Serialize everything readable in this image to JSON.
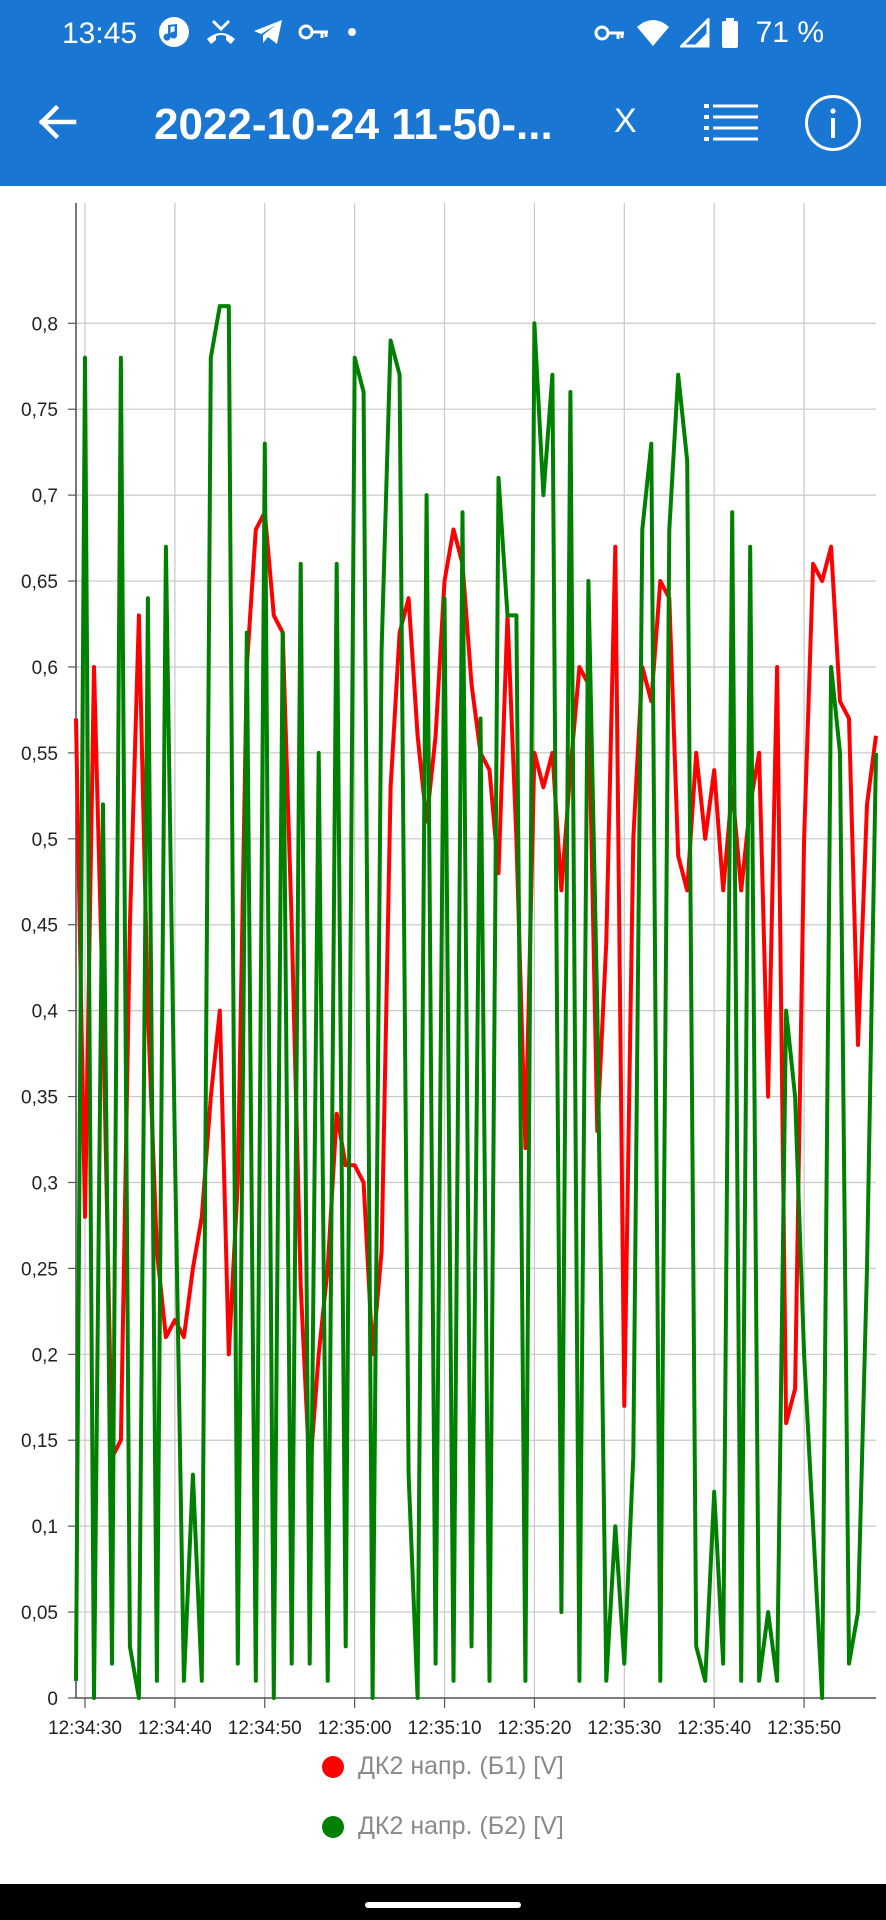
{
  "status_bar": {
    "time": "13:45",
    "battery": "71 %",
    "icons": [
      "music-icon",
      "missed-call-icon",
      "telegram-icon",
      "key-icon",
      "dot-icon",
      "vpn-key-icon",
      "wifi-icon",
      "signal-icon",
      "battery-icon"
    ]
  },
  "toolbar": {
    "title": "2022-10-24 11-50-...",
    "x_label": "X",
    "icons": [
      "back-arrow-icon",
      "list-icon",
      "info-icon"
    ]
  },
  "chart_data": {
    "type": "line",
    "title": "",
    "xlabel": "",
    "ylabel": "",
    "ylim": [
      0,
      0.87
    ],
    "xlim": [
      "12:34:29",
      "12:35:58"
    ],
    "grid": true,
    "legend_placement": "bottom",
    "y_ticks": [
      "0",
      "0,05",
      "0,1",
      "0,15",
      "0,2",
      "0,25",
      "0,3",
      "0,35",
      "0,4",
      "0,45",
      "0,5",
      "0,55",
      "0,6",
      "0,65",
      "0,7",
      "0,75",
      "0,8"
    ],
    "x_ticks": [
      "12:34:30",
      "12:34:40",
      "12:34:50",
      "12:35:00",
      "12:35:10",
      "12:35:20",
      "12:35:30",
      "12:35:40",
      "12:35:50"
    ],
    "series": [
      {
        "name": "ДК2 напр. (Б1) [V]",
        "color": "#ff0000",
        "x": [
          "12:34:29",
          "12:34:30",
          "12:34:31",
          "12:34:32",
          "12:34:33",
          "12:34:34",
          "12:34:35",
          "12:34:36",
          "12:34:37",
          "12:34:38",
          "12:34:39",
          "12:34:40",
          "12:34:41",
          "12:34:42",
          "12:34:43",
          "12:34:44",
          "12:34:45",
          "12:34:46",
          "12:34:47",
          "12:34:48",
          "12:34:49",
          "12:34:50",
          "12:34:51",
          "12:34:52",
          "12:34:53",
          "12:34:54",
          "12:34:55",
          "12:34:56",
          "12:34:57",
          "12:34:58",
          "12:34:59",
          "12:35:00",
          "12:35:01",
          "12:35:02",
          "12:35:03",
          "12:35:04",
          "12:35:05",
          "12:35:06",
          "12:35:07",
          "12:35:08",
          "12:35:09",
          "12:35:10",
          "12:35:11",
          "12:35:12",
          "12:35:13",
          "12:35:14",
          "12:35:15",
          "12:35:16",
          "12:35:17",
          "12:35:18",
          "12:35:19",
          "12:35:20",
          "12:35:21",
          "12:35:22",
          "12:35:23",
          "12:35:24",
          "12:35:25",
          "12:35:26",
          "12:35:27",
          "12:35:28",
          "12:35:29",
          "12:35:30",
          "12:35:31",
          "12:35:32",
          "12:35:33",
          "12:35:34",
          "12:35:35",
          "12:35:36",
          "12:35:37",
          "12:35:38",
          "12:35:39",
          "12:35:40",
          "12:35:41",
          "12:35:42",
          "12:35:43",
          "12:35:44",
          "12:35:45",
          "12:35:46",
          "12:35:47",
          "12:35:48",
          "12:35:49",
          "12:35:50",
          "12:35:51",
          "12:35:52",
          "12:35:53",
          "12:35:54",
          "12:35:55",
          "12:35:56",
          "12:35:57",
          "12:35:58"
        ],
        "values": [
          0.57,
          0.28,
          0.6,
          0.4,
          0.14,
          0.15,
          0.45,
          0.63,
          0.4,
          0.26,
          0.21,
          0.22,
          0.21,
          0.25,
          0.28,
          0.35,
          0.4,
          0.2,
          0.3,
          0.6,
          0.68,
          0.69,
          0.63,
          0.62,
          0.45,
          0.24,
          0.13,
          0.2,
          0.25,
          0.34,
          0.31,
          0.31,
          0.3,
          0.2,
          0.26,
          0.53,
          0.62,
          0.64,
          0.56,
          0.51,
          0.56,
          0.65,
          0.68,
          0.66,
          0.59,
          0.55,
          0.54,
          0.48,
          0.63,
          0.5,
          0.32,
          0.55,
          0.53,
          0.55,
          0.47,
          0.54,
          0.6,
          0.59,
          0.33,
          0.44,
          0.67,
          0.17,
          0.5,
          0.6,
          0.58,
          0.65,
          0.64,
          0.49,
          0.47,
          0.55,
          0.5,
          0.54,
          0.47,
          0.53,
          0.47,
          0.52,
          0.55,
          0.35,
          0.6,
          0.16,
          0.18,
          0.5,
          0.66,
          0.65,
          0.67,
          0.58,
          0.57,
          0.38,
          0.52,
          0.56
        ]
      },
      {
        "name": "ДК2 напр. (Б2) [V]",
        "color": "#008000",
        "x": [
          "12:34:29",
          "12:34:30",
          "12:34:31",
          "12:34:32",
          "12:34:33",
          "12:34:34",
          "12:34:35",
          "12:34:36",
          "12:34:37",
          "12:34:38",
          "12:34:39",
          "12:34:40",
          "12:34:41",
          "12:34:42",
          "12:34:43",
          "12:34:44",
          "12:34:45",
          "12:34:46",
          "12:34:47",
          "12:34:48",
          "12:34:49",
          "12:34:50",
          "12:34:51",
          "12:34:52",
          "12:34:53",
          "12:34:54",
          "12:34:55",
          "12:34:56",
          "12:34:57",
          "12:34:58",
          "12:34:59",
          "12:35:00",
          "12:35:01",
          "12:35:02",
          "12:35:03",
          "12:35:04",
          "12:35:05",
          "12:35:06",
          "12:35:07",
          "12:35:08",
          "12:35:09",
          "12:35:10",
          "12:35:11",
          "12:35:12",
          "12:35:13",
          "12:35:14",
          "12:35:15",
          "12:35:16",
          "12:35:17",
          "12:35:18",
          "12:35:19",
          "12:35:20",
          "12:35:21",
          "12:35:22",
          "12:35:23",
          "12:35:24",
          "12:35:25",
          "12:35:26",
          "12:35:27",
          "12:35:28",
          "12:35:29",
          "12:35:30",
          "12:35:31",
          "12:35:32",
          "12:35:33",
          "12:35:34",
          "12:35:35",
          "12:35:36",
          "12:35:37",
          "12:35:38",
          "12:35:39",
          "12:35:40",
          "12:35:41",
          "12:35:42",
          "12:35:43",
          "12:35:44",
          "12:35:45",
          "12:35:46",
          "12:35:47",
          "12:35:48",
          "12:35:49",
          "12:35:50",
          "12:35:51",
          "12:35:52",
          "12:35:53",
          "12:35:54",
          "12:35:55",
          "12:35:56",
          "12:35:57",
          "12:35:58"
        ],
        "values": [
          0.01,
          0.78,
          0.0,
          0.52,
          0.02,
          0.78,
          0.03,
          0.0,
          0.64,
          0.01,
          0.67,
          0.32,
          0.01,
          0.13,
          0.01,
          0.78,
          0.81,
          0.81,
          0.02,
          0.62,
          0.01,
          0.73,
          0.0,
          0.62,
          0.02,
          0.66,
          0.02,
          0.55,
          0.01,
          0.66,
          0.03,
          0.78,
          0.76,
          0.0,
          0.61,
          0.79,
          0.77,
          0.13,
          0.0,
          0.7,
          0.02,
          0.64,
          0.01,
          0.69,
          0.03,
          0.57,
          0.01,
          0.71,
          0.63,
          0.63,
          0.01,
          0.8,
          0.7,
          0.77,
          0.05,
          0.76,
          0.01,
          0.65,
          0.4,
          0.01,
          0.1,
          0.02,
          0.14,
          0.68,
          0.73,
          0.01,
          0.68,
          0.77,
          0.72,
          0.03,
          0.01,
          0.12,
          0.02,
          0.69,
          0.01,
          0.67,
          0.01,
          0.05,
          0.01,
          0.4,
          0.35,
          0.2,
          0.1,
          0.0,
          0.6,
          0.55,
          0.02,
          0.05,
          0.25,
          0.55
        ]
      }
    ]
  }
}
